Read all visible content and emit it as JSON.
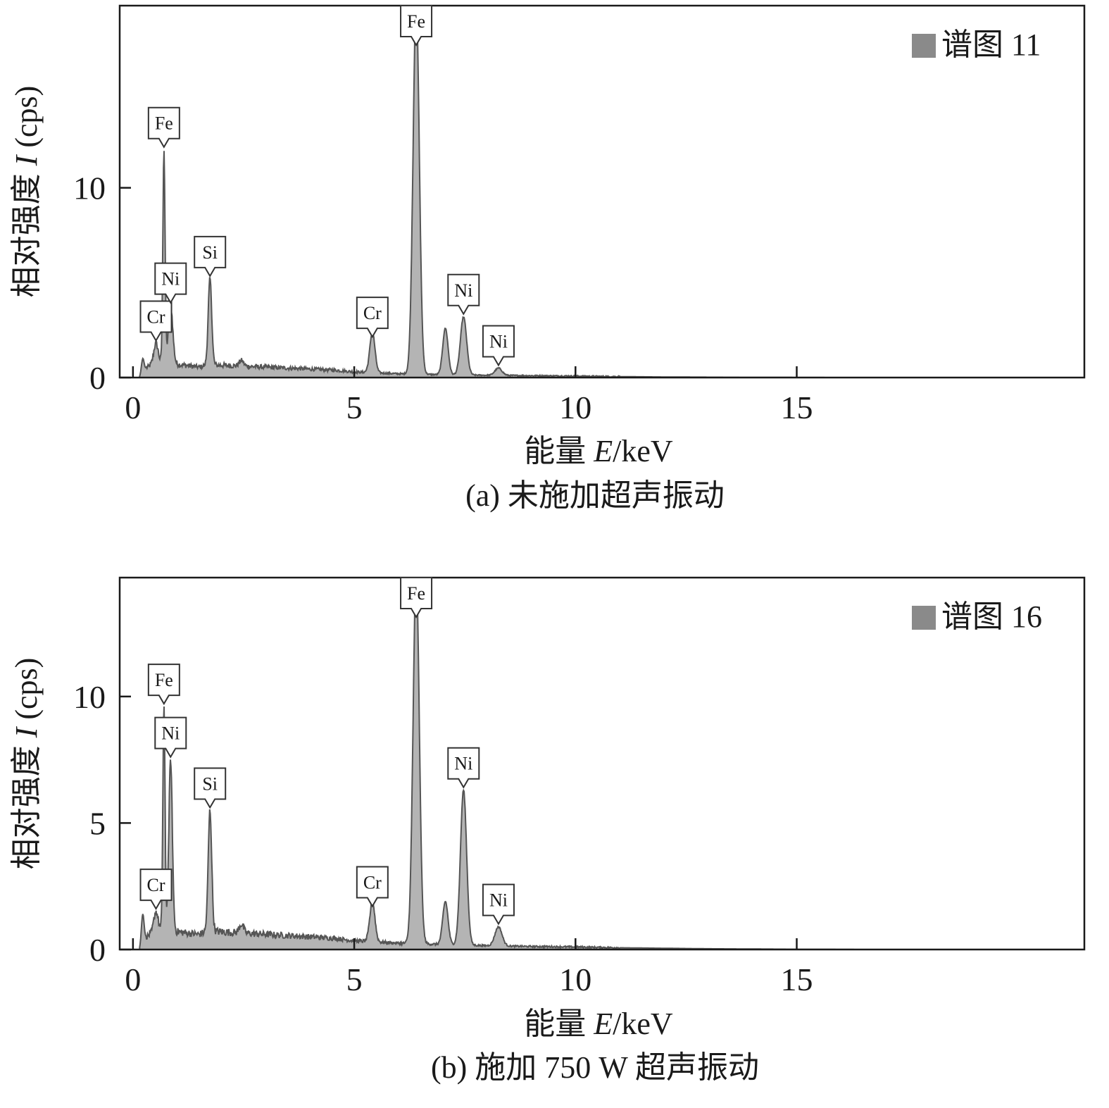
{
  "chart_data": [
    {
      "type": "area",
      "caption": "(a) 未施加超声振动",
      "xlabel": "能量 ",
      "xlabel_var": "E",
      "xlabel_unit": "/keV",
      "ylabel": "相对强度 ",
      "ylabel_var": "I",
      "ylabel_unit": " (cps)",
      "xlim": [
        -0.3,
        21.5
      ],
      "ylim": [
        0,
        19.6
      ],
      "xticks": [
        0,
        5,
        10,
        15
      ],
      "yticks": [
        0,
        10
      ],
      "legend": {
        "label": "谱图 11",
        "position": "top-right",
        "color": "#8a8a8a"
      },
      "fill_color": "#b4b4b4",
      "line_color": "#555555",
      "baseline": [
        [
          0.15,
          0.0
        ],
        [
          0.3,
          0.5
        ],
        [
          0.5,
          0.8
        ],
        [
          1.0,
          0.7
        ],
        [
          1.5,
          0.55
        ],
        [
          1.7,
          0.65
        ],
        [
          2.0,
          0.65
        ],
        [
          2.5,
          0.6
        ],
        [
          3.0,
          0.55
        ],
        [
          3.5,
          0.5
        ],
        [
          4.0,
          0.45
        ],
        [
          4.5,
          0.4
        ],
        [
          5.0,
          0.3
        ],
        [
          5.5,
          0.25
        ],
        [
          6.0,
          0.2
        ],
        [
          7.0,
          0.15
        ],
        [
          8.0,
          0.12
        ],
        [
          9.0,
          0.1
        ],
        [
          10.0,
          0.08
        ],
        [
          11.0,
          0.05
        ],
        [
          12.0,
          0.03
        ],
        [
          13.0,
          0.02
        ],
        [
          14.0,
          0.01
        ],
        [
          15.0,
          0.005
        ],
        [
          16.0,
          0.0
        ],
        [
          21.5,
          0.0
        ]
      ],
      "peaks": [
        {
          "label": "",
          "energy": 0.22,
          "intensity": 1.0,
          "width": 0.03
        },
        {
          "label": "Cr",
          "energy": 0.52,
          "intensity": 1.8,
          "width": 0.05
        },
        {
          "label": "Fe",
          "energy": 0.7,
          "intensity": 12.0,
          "width": 0.025
        },
        {
          "label": "Ni",
          "energy": 0.85,
          "intensity": 3.8,
          "width": 0.05
        },
        {
          "label": "Si",
          "energy": 1.74,
          "intensity": 5.2,
          "width": 0.04
        },
        {
          "label": "",
          "energy": 2.45,
          "intensity": 0.9,
          "width": 0.05
        },
        {
          "label": "",
          "energy": 5.41,
          "intensity": 0.65,
          "width": 0.05
        },
        {
          "label": "Cr",
          "energy": 5.41,
          "intensity": 2.0,
          "width": 0.06
        },
        {
          "label": "",
          "energy": 6.4,
          "intensity": 0.45,
          "width": 0.05
        },
        {
          "label": "Fe",
          "energy": 6.4,
          "intensity": 19.6,
          "width": 0.07
        },
        {
          "label": "",
          "energy": 7.06,
          "intensity": 2.6,
          "width": 0.06
        },
        {
          "label": "Ni",
          "energy": 7.47,
          "intensity": 3.2,
          "width": 0.07
        },
        {
          "label": "Ni",
          "energy": 8.26,
          "intensity": 0.5,
          "width": 0.08
        }
      ]
    },
    {
      "type": "area",
      "caption": "(b) 施加 750 W 超声振动",
      "xlabel": "能量 ",
      "xlabel_var": "E",
      "xlabel_unit": "/keV",
      "ylabel": "相对强度 ",
      "ylabel_var": "I",
      "ylabel_unit": " (cps)",
      "xlim": [
        -0.3,
        21.5
      ],
      "ylim": [
        0,
        14.7
      ],
      "xticks": [
        0,
        5,
        10,
        15
      ],
      "yticks": [
        0,
        5,
        10
      ],
      "legend": {
        "label": "谱图 16",
        "position": "top-right",
        "color": "#8a8a8a"
      },
      "fill_color": "#b4b4b4",
      "line_color": "#555555",
      "baseline": [
        [
          0.15,
          0.0
        ],
        [
          0.3,
          0.5
        ],
        [
          0.5,
          0.7
        ],
        [
          1.0,
          0.7
        ],
        [
          1.5,
          0.6
        ],
        [
          1.7,
          0.75
        ],
        [
          2.0,
          0.7
        ],
        [
          2.5,
          0.65
        ],
        [
          3.0,
          0.6
        ],
        [
          3.5,
          0.55
        ],
        [
          4.0,
          0.5
        ],
        [
          4.5,
          0.45
        ],
        [
          5.0,
          0.35
        ],
        [
          5.5,
          0.3
        ],
        [
          6.0,
          0.25
        ],
        [
          7.0,
          0.2
        ],
        [
          8.0,
          0.15
        ],
        [
          9.0,
          0.12
        ],
        [
          10.0,
          0.1
        ],
        [
          11.0,
          0.07
        ],
        [
          12.0,
          0.05
        ],
        [
          13.0,
          0.03
        ],
        [
          14.0,
          0.02
        ],
        [
          15.0,
          0.01
        ],
        [
          16.5,
          0.0
        ],
        [
          21.5,
          0.0
        ]
      ],
      "peaks": [
        {
          "label": "",
          "energy": 0.22,
          "intensity": 1.4,
          "width": 0.03
        },
        {
          "label": "Cr",
          "energy": 0.52,
          "intensity": 1.5,
          "width": 0.05
        },
        {
          "label": "Fe",
          "energy": 0.7,
          "intensity": 9.6,
          "width": 0.025
        },
        {
          "label": "Ni",
          "energy": 0.85,
          "intensity": 7.5,
          "width": 0.04
        },
        {
          "label": "Si",
          "energy": 1.74,
          "intensity": 5.5,
          "width": 0.04
        },
        {
          "label": "",
          "energy": 2.45,
          "intensity": 1.0,
          "width": 0.05
        },
        {
          "label": "",
          "energy": 5.41,
          "intensity": 0.6,
          "width": 0.05
        },
        {
          "label": "Cr",
          "energy": 5.41,
          "intensity": 1.6,
          "width": 0.06
        },
        {
          "label": "",
          "energy": 6.4,
          "intensity": 0.45,
          "width": 0.05
        },
        {
          "label": "Fe",
          "energy": 6.4,
          "intensity": 14.7,
          "width": 0.07
        },
        {
          "label": "",
          "energy": 7.06,
          "intensity": 1.9,
          "width": 0.06
        },
        {
          "label": "Ni",
          "energy": 7.47,
          "intensity": 6.3,
          "width": 0.07
        },
        {
          "label": "Ni",
          "energy": 8.26,
          "intensity": 0.9,
          "width": 0.08
        }
      ]
    }
  ]
}
